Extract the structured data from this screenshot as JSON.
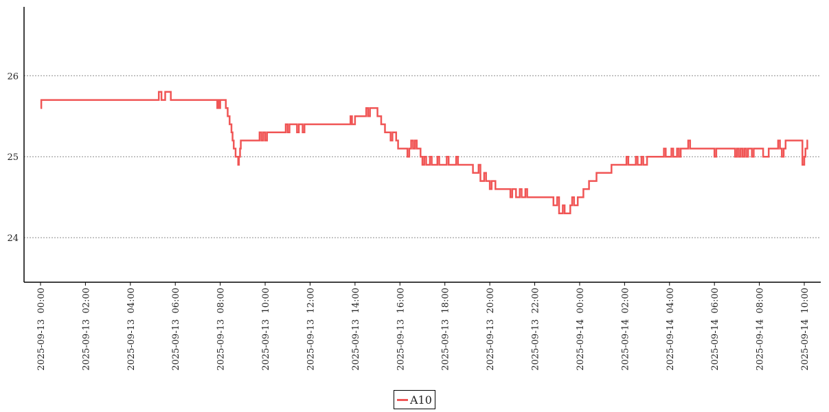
{
  "chart_data": {
    "type": "line",
    "xlabel": "",
    "ylabel": "",
    "title": "",
    "ylim": [
      23.45,
      26.85
    ],
    "yticks": [
      24,
      25,
      26
    ],
    "xlim": [
      "2025-09-12 23:16",
      "2025-09-14 10:44"
    ],
    "xticks": [
      "2025-09-13 00:00",
      "2025-09-13 02:00",
      "2025-09-13 04:00",
      "2025-09-13 06:00",
      "2025-09-13 08:00",
      "2025-09-13 10:00",
      "2025-09-13 12:00",
      "2025-09-13 14:00",
      "2025-09-13 16:00",
      "2025-09-13 18:00",
      "2025-09-13 20:00",
      "2025-09-13 22:00",
      "2025-09-14 00:00",
      "2025-09-14 02:00",
      "2025-09-14 04:00",
      "2025-09-14 06:00",
      "2025-09-14 08:00",
      "2025-09-14 10:00"
    ],
    "grid": "horizontal dotted",
    "legend_position": "bottom-center",
    "series": [
      {
        "name": "A10",
        "color": "#f05555",
        "step": true,
        "points": [
          [
            "2025-09-13 00:00",
            25.6
          ],
          [
            "2025-09-13 00:02",
            25.7
          ],
          [
            "2025-09-13 05:15",
            25.7
          ],
          [
            "2025-09-13 05:16",
            25.8
          ],
          [
            "2025-09-13 05:23",
            25.7
          ],
          [
            "2025-09-13 05:33",
            25.8
          ],
          [
            "2025-09-13 05:48",
            25.7
          ],
          [
            "2025-09-13 07:52",
            25.6
          ],
          [
            "2025-09-13 07:55",
            25.7
          ],
          [
            "2025-09-13 07:58",
            25.6
          ],
          [
            "2025-09-13 08:00",
            25.7
          ],
          [
            "2025-09-13 08:15",
            25.6
          ],
          [
            "2025-09-13 08:20",
            25.5
          ],
          [
            "2025-09-13 08:25",
            25.4
          ],
          [
            "2025-09-13 08:30",
            25.3
          ],
          [
            "2025-09-13 08:33",
            25.2
          ],
          [
            "2025-09-13 08:36",
            25.1
          ],
          [
            "2025-09-13 08:41",
            25.0
          ],
          [
            "2025-09-13 08:48",
            24.9
          ],
          [
            "2025-09-13 08:50",
            25.0
          ],
          [
            "2025-09-13 08:53",
            25.1
          ],
          [
            "2025-09-13 08:55",
            25.2
          ],
          [
            "2025-09-13 09:45",
            25.3
          ],
          [
            "2025-09-13 09:50",
            25.2
          ],
          [
            "2025-09-13 09:55",
            25.3
          ],
          [
            "2025-09-13 10:00",
            25.2
          ],
          [
            "2025-09-13 10:05",
            25.3
          ],
          [
            "2025-09-13 10:55",
            25.4
          ],
          [
            "2025-09-13 11:00",
            25.3
          ],
          [
            "2025-09-13 11:05",
            25.4
          ],
          [
            "2025-09-13 11:25",
            25.3
          ],
          [
            "2025-09-13 11:30",
            25.4
          ],
          [
            "2025-09-13 11:40",
            25.3
          ],
          [
            "2025-09-13 11:45",
            25.4
          ],
          [
            "2025-09-13 13:48",
            25.5
          ],
          [
            "2025-09-13 13:52",
            25.4
          ],
          [
            "2025-09-13 14:00",
            25.5
          ],
          [
            "2025-09-13 14:30",
            25.6
          ],
          [
            "2025-09-13 14:35",
            25.5
          ],
          [
            "2025-09-13 14:40",
            25.6
          ],
          [
            "2025-09-13 15:00",
            25.5
          ],
          [
            "2025-09-13 15:10",
            25.4
          ],
          [
            "2025-09-13 15:20",
            25.3
          ],
          [
            "2025-09-13 15:35",
            25.2
          ],
          [
            "2025-09-13 15:40",
            25.3
          ],
          [
            "2025-09-13 15:50",
            25.2
          ],
          [
            "2025-09-13 15:55",
            25.1
          ],
          [
            "2025-09-13 16:20",
            25.0
          ],
          [
            "2025-09-13 16:25",
            25.1
          ],
          [
            "2025-09-13 16:30",
            25.2
          ],
          [
            "2025-09-13 16:35",
            25.1
          ],
          [
            "2025-09-13 16:40",
            25.2
          ],
          [
            "2025-09-13 16:45",
            25.1
          ],
          [
            "2025-09-13 16:55",
            25.0
          ],
          [
            "2025-09-13 17:00",
            24.9
          ],
          [
            "2025-09-13 17:05",
            25.0
          ],
          [
            "2025-09-13 17:10",
            24.9
          ],
          [
            "2025-09-13 17:20",
            25.0
          ],
          [
            "2025-09-13 17:25",
            24.9
          ],
          [
            "2025-09-13 17:40",
            25.0
          ],
          [
            "2025-09-13 17:45",
            24.9
          ],
          [
            "2025-09-13 18:05",
            25.0
          ],
          [
            "2025-09-13 18:10",
            24.9
          ],
          [
            "2025-09-13 18:30",
            25.0
          ],
          [
            "2025-09-13 18:35",
            24.9
          ],
          [
            "2025-09-13 19:15",
            24.8
          ],
          [
            "2025-09-13 19:30",
            24.9
          ],
          [
            "2025-09-13 19:35",
            24.7
          ],
          [
            "2025-09-13 19:45",
            24.8
          ],
          [
            "2025-09-13 19:50",
            24.7
          ],
          [
            "2025-09-13 20:00",
            24.6
          ],
          [
            "2025-09-13 20:05",
            24.7
          ],
          [
            "2025-09-13 20:15",
            24.6
          ],
          [
            "2025-09-13 20:55",
            24.5
          ],
          [
            "2025-09-13 21:00",
            24.6
          ],
          [
            "2025-09-13 21:10",
            24.5
          ],
          [
            "2025-09-13 21:20",
            24.6
          ],
          [
            "2025-09-13 21:25",
            24.5
          ],
          [
            "2025-09-13 21:35",
            24.6
          ],
          [
            "2025-09-13 21:40",
            24.5
          ],
          [
            "2025-09-13 22:50",
            24.4
          ],
          [
            "2025-09-13 23:00",
            24.5
          ],
          [
            "2025-09-13 23:05",
            24.3
          ],
          [
            "2025-09-13 23:15",
            24.4
          ],
          [
            "2025-09-13 23:20",
            24.3
          ],
          [
            "2025-09-13 23:35",
            24.4
          ],
          [
            "2025-09-13 23:40",
            24.5
          ],
          [
            "2025-09-13 23:45",
            24.4
          ],
          [
            "2025-09-13 23:55",
            24.5
          ],
          [
            "2025-09-14 00:05",
            24.5
          ],
          [
            "2025-09-14 00:10",
            24.6
          ],
          [
            "2025-09-14 00:25",
            24.7
          ],
          [
            "2025-09-14 00:45",
            24.8
          ],
          [
            "2025-09-14 01:25",
            24.9
          ],
          [
            "2025-09-14 02:05",
            25.0
          ],
          [
            "2025-09-14 02:10",
            24.9
          ],
          [
            "2025-09-14 02:30",
            25.0
          ],
          [
            "2025-09-14 02:35",
            24.9
          ],
          [
            "2025-09-14 02:45",
            25.0
          ],
          [
            "2025-09-14 02:50",
            24.9
          ],
          [
            "2025-09-14 03:00",
            25.0
          ],
          [
            "2025-09-14 03:45",
            25.1
          ],
          [
            "2025-09-14 03:50",
            25.0
          ],
          [
            "2025-09-14 04:05",
            25.1
          ],
          [
            "2025-09-14 04:10",
            25.0
          ],
          [
            "2025-09-14 04:20",
            25.1
          ],
          [
            "2025-09-14 04:25",
            25.0
          ],
          [
            "2025-09-14 04:30",
            25.1
          ],
          [
            "2025-09-14 04:50",
            25.2
          ],
          [
            "2025-09-14 04:55",
            25.1
          ],
          [
            "2025-09-14 06:00",
            25.0
          ],
          [
            "2025-09-14 06:05",
            25.1
          ],
          [
            "2025-09-14 06:55",
            25.0
          ],
          [
            "2025-09-14 07:00",
            25.1
          ],
          [
            "2025-09-14 07:05",
            25.0
          ],
          [
            "2025-09-14 07:10",
            25.1
          ],
          [
            "2025-09-14 07:15",
            25.0
          ],
          [
            "2025-09-14 07:20",
            25.1
          ],
          [
            "2025-09-14 07:25",
            25.0
          ],
          [
            "2025-09-14 07:30",
            25.1
          ],
          [
            "2025-09-14 07:40",
            25.0
          ],
          [
            "2025-09-14 07:45",
            25.1
          ],
          [
            "2025-09-14 08:10",
            25.0
          ],
          [
            "2025-09-14 08:25",
            25.1
          ],
          [
            "2025-09-14 08:50",
            25.2
          ],
          [
            "2025-09-14 08:55",
            25.1
          ],
          [
            "2025-09-14 09:00",
            25.0
          ],
          [
            "2025-09-14 09:05",
            25.1
          ],
          [
            "2025-09-14 09:10",
            25.2
          ],
          [
            "2025-09-14 09:55",
            24.9
          ],
          [
            "2025-09-14 10:00",
            25.0
          ],
          [
            "2025-09-14 10:03",
            25.1
          ],
          [
            "2025-09-14 10:08",
            25.2
          ],
          [
            "2025-09-14 10:10",
            25.2
          ]
        ]
      }
    ]
  }
}
